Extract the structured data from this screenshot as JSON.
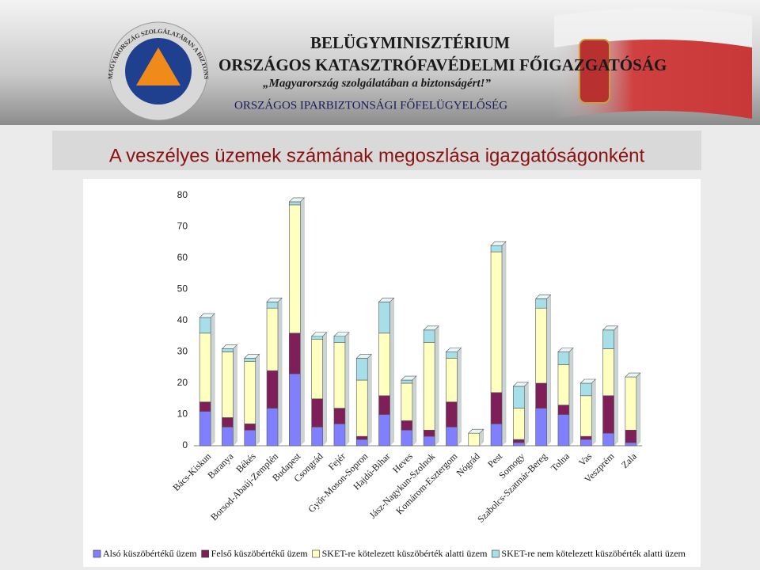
{
  "header": {
    "ministry": "BELÜGYMINISZTÉRIUM",
    "directorate": "ORSZÁGOS KATASZTRÓFAVÉDELMI FŐIGAZGATÓSÁG",
    "motto": "„Magyarország szolgálatában a biztonságért!”",
    "department": "ORSZÁGOS IPARBIZTONSÁGI FŐFELÜGYELŐSÉG",
    "logo_text": "MAGYARORSZÁG SZOLGÁLATÁBAN A BIZTONSÁGÉRT"
  },
  "chart_data": {
    "type": "stacked_bar",
    "title": "A veszélyes üzemek számának megoszlása igazgatóságonként",
    "categories": [
      "Bács-Kiskun",
      "Baranya",
      "Békés",
      "Borsod-Abaúj-Zemplén",
      "Budapest",
      "Csongrád",
      "Fejér",
      "Győr-Moson-Sopron",
      "Hajdú-Bihar",
      "Heves",
      "Jász-Nagykun-Szolnok",
      "Komárom-Esztergom",
      "Nógrád",
      "Pest",
      "Somogy",
      "Szabolcs-Szatmár-Bereg",
      "Tolna",
      "Vas",
      "Veszprém",
      "Zala"
    ],
    "series": [
      {
        "name": "Alsó küszöbértékű üzem",
        "color": "#8080ff",
        "values": [
          11,
          6,
          5,
          12,
          23,
          6,
          7,
          2,
          10,
          5,
          3,
          6,
          0,
          7,
          1,
          12,
          10,
          2,
          4,
          1
        ]
      },
      {
        "name": "Felső küszöbértékű üzem",
        "color": "#7f1f5a",
        "values": [
          3,
          3,
          2,
          12,
          13,
          9,
          5,
          1,
          6,
          3,
          2,
          8,
          0,
          10,
          1,
          8,
          3,
          1,
          12,
          4
        ]
      },
      {
        "name": "SKET-re kötelezett küszöbérték alatti üzem",
        "color": "#ffffc0",
        "values": [
          22,
          21,
          20,
          20,
          41,
          19,
          21,
          18,
          20,
          12,
          28,
          14,
          4,
          45,
          10,
          24,
          13,
          13,
          15,
          17
        ]
      },
      {
        "name": "SKET-re nem kötelezett küszöbérték alatti üzem",
        "color": "#a6dfe8",
        "values": [
          5,
          1,
          1,
          2,
          1,
          1,
          2,
          7,
          10,
          1,
          4,
          2,
          0,
          2,
          7,
          3,
          4,
          4,
          6,
          0
        ]
      }
    ],
    "ylim": [
      0,
      80
    ],
    "yticks": [
      0,
      10,
      20,
      30,
      40,
      50,
      60,
      70,
      80
    ],
    "grid": false,
    "legend": "bottom"
  }
}
